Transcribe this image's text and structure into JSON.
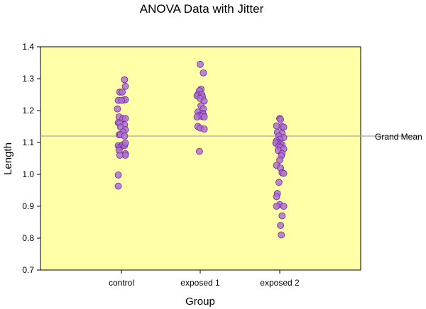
{
  "chart_data": {
    "type": "scatter",
    "title": "ANOVA Data with Jitter",
    "xlabel": "Group",
    "ylabel": "Length",
    "ylim": [
      0.7,
      1.4
    ],
    "yticks": [
      "0.7",
      "0.8",
      "0.9",
      "1.0",
      "1.1",
      "1.2",
      "1.3",
      "1.4"
    ],
    "categories": [
      "control",
      "exposed 1",
      "exposed 2"
    ],
    "grid": false,
    "reference_line": {
      "label": "Grand Mean",
      "value": 1.12
    },
    "colors": {
      "plot_background": "#ffffa8",
      "point_fill": "#b070d0",
      "point_stroke": "#6a2a9a",
      "reference_line": "#a8a8a8"
    },
    "points": [
      {
        "group": "control",
        "jitter": 0.04,
        "y": 1.297
      },
      {
        "group": "control",
        "jitter": 0.05,
        "y": 1.276
      },
      {
        "group": "control",
        "jitter": -0.02,
        "y": 1.258
      },
      {
        "group": "control",
        "jitter": 0.01,
        "y": 1.258
      },
      {
        "group": "control",
        "jitter": -0.04,
        "y": 1.232
      },
      {
        "group": "control",
        "jitter": 0.03,
        "y": 1.233
      },
      {
        "group": "control",
        "jitter": 0.05,
        "y": 1.234
      },
      {
        "group": "control",
        "jitter": 0.0,
        "y": 1.232
      },
      {
        "group": "control",
        "jitter": -0.05,
        "y": 1.205
      },
      {
        "group": "control",
        "jitter": -0.03,
        "y": 1.18
      },
      {
        "group": "control",
        "jitter": 0.02,
        "y": 1.175
      },
      {
        "group": "control",
        "jitter": 0.05,
        "y": 1.175
      },
      {
        "group": "control",
        "jitter": -0.04,
        "y": 1.162
      },
      {
        "group": "control",
        "jitter": 0.04,
        "y": 1.155
      },
      {
        "group": "control",
        "jitter": -0.02,
        "y": 1.16
      },
      {
        "group": "control",
        "jitter": -0.01,
        "y": 1.148
      },
      {
        "group": "control",
        "jitter": 0.05,
        "y": 1.14
      },
      {
        "group": "control",
        "jitter": 0.02,
        "y": 1.133
      },
      {
        "group": "control",
        "jitter": -0.03,
        "y": 1.124
      },
      {
        "group": "control",
        "jitter": -0.01,
        "y": 1.124
      },
      {
        "group": "control",
        "jitter": 0.04,
        "y": 1.12
      },
      {
        "group": "control",
        "jitter": -0.04,
        "y": 1.09
      },
      {
        "group": "control",
        "jitter": -0.02,
        "y": 1.085
      },
      {
        "group": "control",
        "jitter": 0.0,
        "y": 1.088
      },
      {
        "group": "control",
        "jitter": 0.02,
        "y": 1.093
      },
      {
        "group": "control",
        "jitter": 0.04,
        "y": 1.09
      },
      {
        "group": "control",
        "jitter": 0.05,
        "y": 1.098
      },
      {
        "group": "control",
        "jitter": -0.03,
        "y": 1.075
      },
      {
        "group": "control",
        "jitter": 0.05,
        "y": 1.065
      },
      {
        "group": "control",
        "jitter": 0.05,
        "y": 1.06
      },
      {
        "group": "control",
        "jitter": -0.02,
        "y": 1.06
      },
      {
        "group": "control",
        "jitter": -0.04,
        "y": 0.998
      },
      {
        "group": "control",
        "jitter": -0.04,
        "y": 0.963
      },
      {
        "group": "exposed 1",
        "jitter": 0.0,
        "y": 1.345
      },
      {
        "group": "exposed 1",
        "jitter": 0.04,
        "y": 1.318
      },
      {
        "group": "exposed 1",
        "jitter": 0.01,
        "y": 1.267
      },
      {
        "group": "exposed 1",
        "jitter": -0.01,
        "y": 1.262
      },
      {
        "group": "exposed 1",
        "jitter": -0.03,
        "y": 1.25
      },
      {
        "group": "exposed 1",
        "jitter": -0.04,
        "y": 1.246
      },
      {
        "group": "exposed 1",
        "jitter": 0.02,
        "y": 1.25
      },
      {
        "group": "exposed 1",
        "jitter": 0.03,
        "y": 1.243
      },
      {
        "group": "exposed 1",
        "jitter": 0.0,
        "y": 1.238
      },
      {
        "group": "exposed 1",
        "jitter": 0.05,
        "y": 1.23
      },
      {
        "group": "exposed 1",
        "jitter": 0.01,
        "y": 1.215
      },
      {
        "group": "exposed 1",
        "jitter": 0.04,
        "y": 1.205
      },
      {
        "group": "exposed 1",
        "jitter": -0.03,
        "y": 1.195
      },
      {
        "group": "exposed 1",
        "jitter": 0.03,
        "y": 1.192
      },
      {
        "group": "exposed 1",
        "jitter": 0.04,
        "y": 1.188
      },
      {
        "group": "exposed 1",
        "jitter": -0.01,
        "y": 1.185
      },
      {
        "group": "exposed 1",
        "jitter": 0.02,
        "y": 1.182
      },
      {
        "group": "exposed 1",
        "jitter": 0.05,
        "y": 1.18
      },
      {
        "group": "exposed 1",
        "jitter": -0.04,
        "y": 1.18
      },
      {
        "group": "exposed 1",
        "jitter": -0.03,
        "y": 1.15
      },
      {
        "group": "exposed 1",
        "jitter": 0.0,
        "y": 1.145
      },
      {
        "group": "exposed 1",
        "jitter": 0.05,
        "y": 1.142
      },
      {
        "group": "exposed 1",
        "jitter": -0.01,
        "y": 1.072
      },
      {
        "group": "exposed 2",
        "jitter": 0.0,
        "y": 1.175
      },
      {
        "group": "exposed 2",
        "jitter": 0.01,
        "y": 1.172
      },
      {
        "group": "exposed 2",
        "jitter": -0.04,
        "y": 1.152
      },
      {
        "group": "exposed 2",
        "jitter": 0.03,
        "y": 1.15
      },
      {
        "group": "exposed 2",
        "jitter": 0.05,
        "y": 1.148
      },
      {
        "group": "exposed 2",
        "jitter": -0.03,
        "y": 1.132
      },
      {
        "group": "exposed 2",
        "jitter": 0.03,
        "y": 1.128
      },
      {
        "group": "exposed 2",
        "jitter": -0.01,
        "y": 1.12
      },
      {
        "group": "exposed 2",
        "jitter": 0.05,
        "y": 1.115
      },
      {
        "group": "exposed 2",
        "jitter": 0.0,
        "y": 1.11
      },
      {
        "group": "exposed 2",
        "jitter": -0.04,
        "y": 1.105
      },
      {
        "group": "exposed 2",
        "jitter": -0.02,
        "y": 1.1
      },
      {
        "group": "exposed 2",
        "jitter": -0.05,
        "y": 1.098
      },
      {
        "group": "exposed 2",
        "jitter": 0.01,
        "y": 1.095
      },
      {
        "group": "exposed 2",
        "jitter": 0.03,
        "y": 1.092
      },
      {
        "group": "exposed 2",
        "jitter": -0.01,
        "y": 1.088
      },
      {
        "group": "exposed 2",
        "jitter": 0.01,
        "y": 1.085
      },
      {
        "group": "exposed 2",
        "jitter": 0.05,
        "y": 1.08
      },
      {
        "group": "exposed 2",
        "jitter": -0.02,
        "y": 1.075
      },
      {
        "group": "exposed 2",
        "jitter": 0.03,
        "y": 1.065
      },
      {
        "group": "exposed 2",
        "jitter": 0.02,
        "y": 1.058
      },
      {
        "group": "exposed 2",
        "jitter": 0.0,
        "y": 1.045
      },
      {
        "group": "exposed 2",
        "jitter": -0.04,
        "y": 1.028
      },
      {
        "group": "exposed 2",
        "jitter": 0.01,
        "y": 1.02
      },
      {
        "group": "exposed 2",
        "jitter": 0.03,
        "y": 1.005
      },
      {
        "group": "exposed 2",
        "jitter": 0.05,
        "y": 1.003
      },
      {
        "group": "exposed 2",
        "jitter": -0.01,
        "y": 0.975
      },
      {
        "group": "exposed 2",
        "jitter": -0.03,
        "y": 0.94
      },
      {
        "group": "exposed 2",
        "jitter": -0.04,
        "y": 0.93
      },
      {
        "group": "exposed 2",
        "jitter": 0.0,
        "y": 0.905
      },
      {
        "group": "exposed 2",
        "jitter": -0.04,
        "y": 0.9
      },
      {
        "group": "exposed 2",
        "jitter": 0.05,
        "y": 0.9
      },
      {
        "group": "exposed 2",
        "jitter": 0.03,
        "y": 0.87
      },
      {
        "group": "exposed 2",
        "jitter": 0.01,
        "y": 0.84
      },
      {
        "group": "exposed 2",
        "jitter": 0.02,
        "y": 0.81
      }
    ]
  }
}
